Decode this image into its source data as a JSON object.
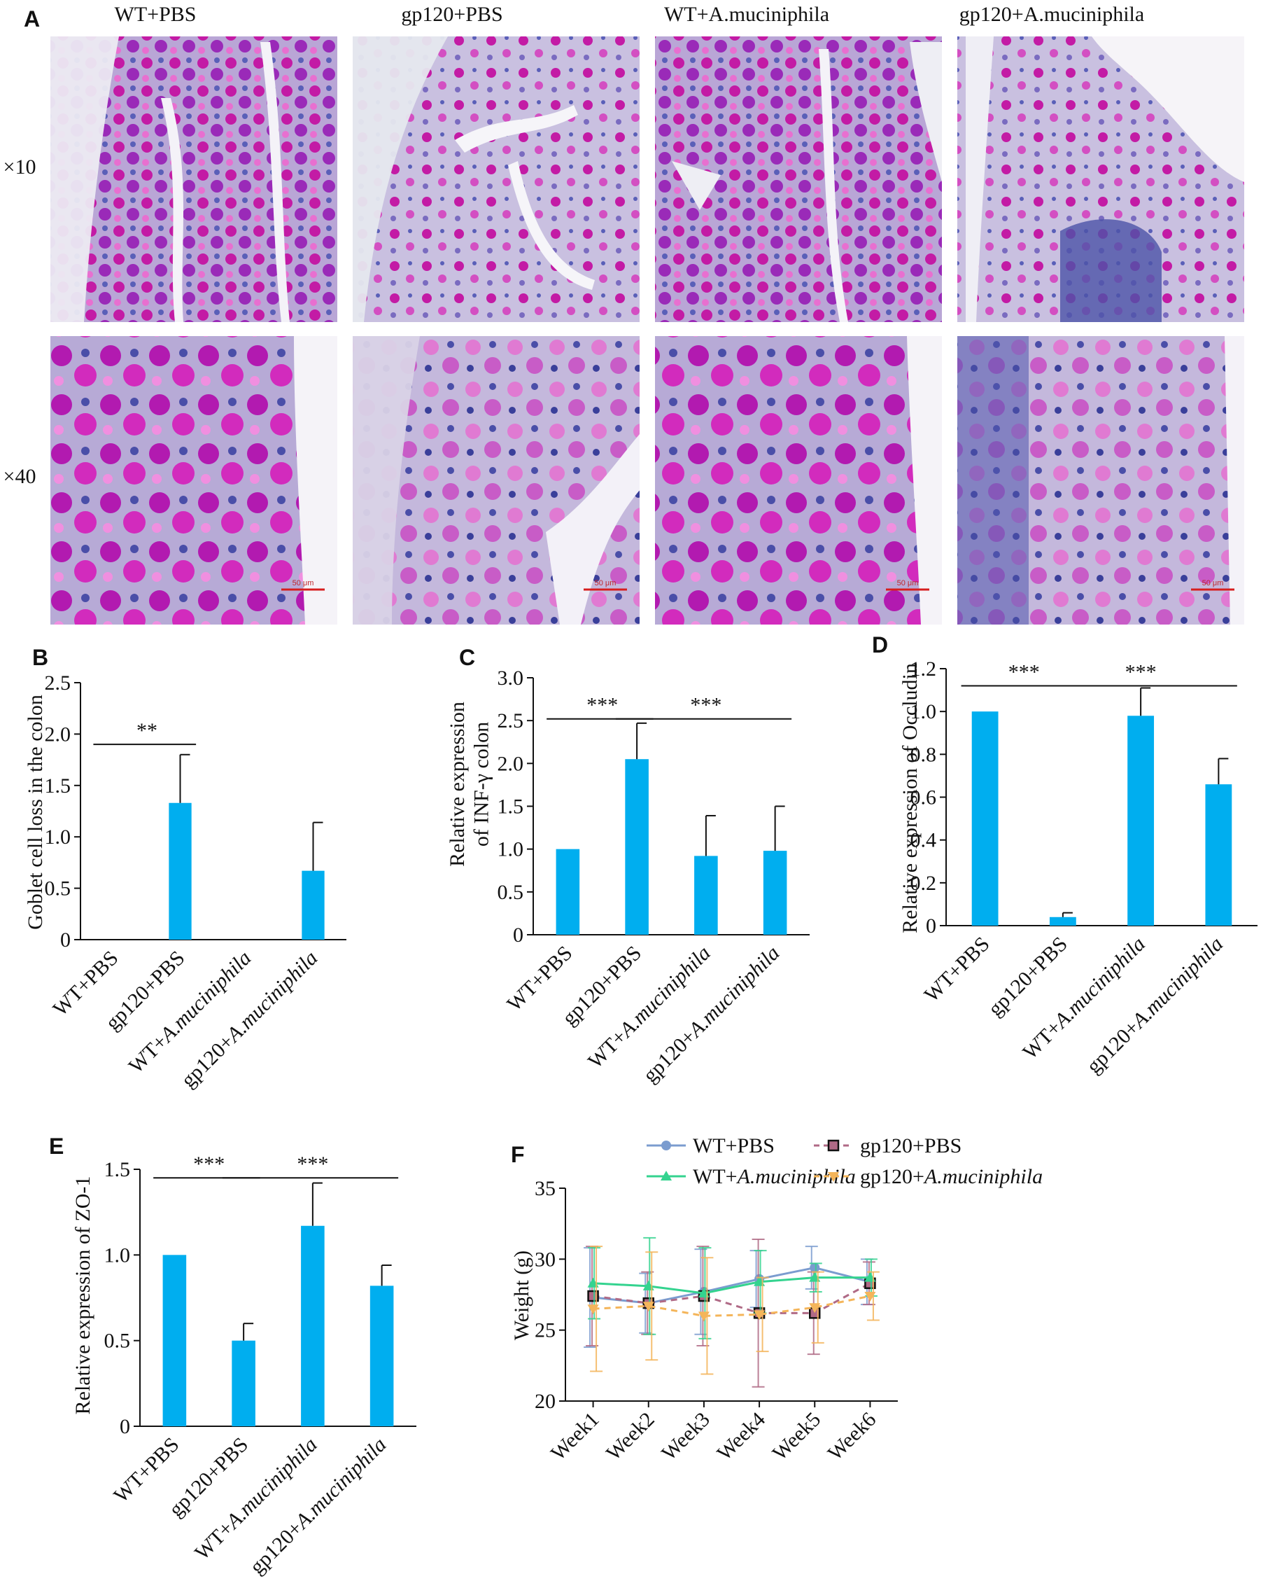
{
  "colors": {
    "bar": "#00aeef",
    "tissue_purple": "#7a2ea8",
    "tissue_magenta": "#c31ba5",
    "tissue_pink": "#e86fd0",
    "tissue_blue": "#5a5fb8",
    "scale_bar": "#d61e1e",
    "series_wt_pbs": "#7b9ccf",
    "series_gp120_pbs": "#b06a86",
    "series_wt_akk": "#34d38f",
    "series_gp120_akk": "#f4b55a"
  },
  "panel_A": {
    "letter": "A",
    "columns": [
      "WT+PBS",
      "gp120+PBS",
      "WT+A.muciniphila",
      "gp120+A.muciniphila"
    ],
    "rows": [
      "×10",
      "×40"
    ],
    "scale_bar_label": "50 μm"
  },
  "chart_data": [
    {
      "panel": "B",
      "type": "bar",
      "ylabel": "Goblet cell loss in the colon",
      "categories": [
        "WT+PBS",
        "gp120+PBS",
        "WT+A.muciniphila",
        "gp120+A.muciniphila"
      ],
      "values": [
        0,
        1.33,
        0,
        0.67
      ],
      "errors": [
        0,
        0.47,
        0,
        0.47
      ],
      "ylim": [
        0,
        2.5
      ],
      "yticks": [
        "0",
        "0.5",
        "1.0",
        "1.5",
        "2.0",
        "2.5"
      ],
      "significance": [
        {
          "from": 0,
          "to": 1,
          "y": 1.9,
          "label": "**"
        }
      ]
    },
    {
      "panel": "C",
      "type": "bar",
      "ylabel": "Relative expression of INF-γ colon",
      "categories": [
        "WT+PBS",
        "gp120+PBS",
        "WT+A.muciniphila",
        "gp120+A.muciniphila"
      ],
      "values": [
        1.0,
        2.05,
        0.92,
        0.98
      ],
      "errors": [
        0,
        0.42,
        0.47,
        0.52
      ],
      "ylim": [
        0,
        3.0
      ],
      "yticks": [
        "0",
        "0.5",
        "1.0",
        "1.5",
        "2.0",
        "2.5",
        "3.0"
      ],
      "significance": [
        {
          "from": 0,
          "to": 1,
          "y": 2.52,
          "label": "***"
        },
        {
          "from": 1,
          "to": 3,
          "y": 2.52,
          "label": "***"
        }
      ]
    },
    {
      "panel": "D",
      "type": "bar",
      "ylabel": "Relative expression of Occludin",
      "categories": [
        "WT+PBS",
        "gp120+PBS",
        "WT+A.muciniphila",
        "gp120+A.muciniphila"
      ],
      "values": [
        1.0,
        0.04,
        0.98,
        0.66
      ],
      "errors": [
        0,
        0.02,
        0.13,
        0.12
      ],
      "ylim": [
        0,
        1.2
      ],
      "yticks": [
        "0",
        "0.2",
        "0.4",
        "0.6",
        "0.8",
        "1.0",
        "1.2"
      ],
      "significance": [
        {
          "from": 0,
          "to": 1,
          "y": 1.12,
          "label": "***"
        },
        {
          "from": 1,
          "to": 3,
          "y": 1.12,
          "label": "***"
        }
      ]
    },
    {
      "panel": "E",
      "type": "bar",
      "ylabel": "Relative expression of ZO-1",
      "categories": [
        "WT+PBS",
        "gp120+PBS",
        "WT+A.muciniphila",
        "gp120+A.muciniphila"
      ],
      "values": [
        1.0,
        0.5,
        1.17,
        0.82
      ],
      "errors": [
        0,
        0.1,
        0.25,
        0.12
      ],
      "ylim": [
        0,
        1.5
      ],
      "yticks": [
        "0",
        "0.5",
        "1.0",
        "1.5"
      ],
      "significance": [
        {
          "from": 0,
          "to": 1,
          "y": 1.45,
          "label": "***"
        },
        {
          "from": 1,
          "to": 3,
          "y": 1.45,
          "label": "***"
        }
      ]
    },
    {
      "panel": "F",
      "type": "line",
      "ylabel": "Weight (g)",
      "x": [
        "Week1",
        "Week2",
        "Week3",
        "Week4",
        "Week5",
        "Week6"
      ],
      "ylim": [
        20,
        35
      ],
      "yticks": [
        "20",
        "25",
        "30",
        "35"
      ],
      "legend": "top",
      "series": [
        {
          "name": "WT+PBS",
          "values": [
            27.3,
            26.9,
            27.7,
            28.6,
            29.4,
            28.4
          ],
          "errors": [
            3.5,
            2.1,
            3.0,
            2.0,
            1.5,
            1.6
          ],
          "marker": "circle",
          "dash": false,
          "color_key": "series_wt_pbs"
        },
        {
          "name": "gp120+PBS",
          "values": [
            27.4,
            26.9,
            27.4,
            26.2,
            26.2,
            28.3
          ],
          "errors": [
            3.5,
            2.2,
            3.5,
            5.2,
            2.9,
            1.5
          ],
          "marker": "square",
          "dash": true,
          "color_key": "series_gp120_pbs"
        },
        {
          "name": "WT+A.muciniphila",
          "values": [
            28.3,
            28.1,
            27.6,
            28.4,
            28.7,
            28.7
          ],
          "errors": [
            2.5,
            3.4,
            3.2,
            2.2,
            1.0,
            1.3
          ],
          "marker": "triangle",
          "dash": false,
          "color_key": "series_wt_akk"
        },
        {
          "name": "gp120+A.muciniphila",
          "values": [
            26.5,
            26.7,
            26.0,
            26.1,
            26.6,
            27.4
          ],
          "errors": [
            4.4,
            3.8,
            4.1,
            2.6,
            2.5,
            1.7
          ],
          "marker": "triangle-down",
          "dash": true,
          "color_key": "series_gp120_akk"
        }
      ]
    }
  ]
}
